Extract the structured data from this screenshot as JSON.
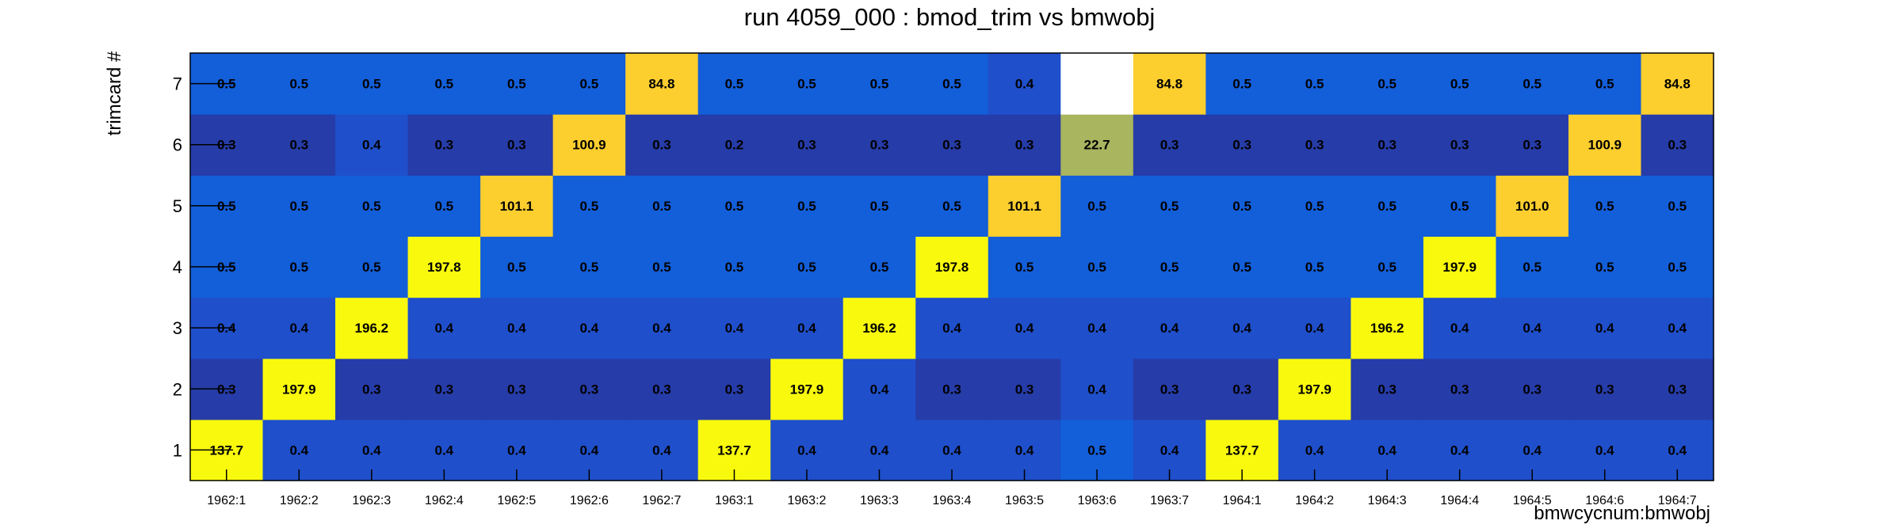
{
  "chart_data": {
    "type": "heatmap",
    "title": "run 4059_000 : bmod_trim vs bmwobj",
    "xlabel": "bmwcycnum:bmwobj",
    "ylabel": "trimcard #",
    "x_categories": [
      "1962:1",
      "1962:2",
      "1962:3",
      "1962:4",
      "1962:5",
      "1962:6",
      "1962:7",
      "1963:1",
      "1963:2",
      "1963:3",
      "1963:4",
      "1963:5",
      "1963:6",
      "1963:7",
      "1964:1",
      "1964:2",
      "1964:3",
      "1964:4",
      "1964:5",
      "1964:6",
      "1964:7"
    ],
    "y_categories": [
      "1",
      "2",
      "3",
      "4",
      "5",
      "6",
      "7"
    ],
    "values": [
      [
        137.7,
        0.4,
        0.4,
        0.4,
        0.4,
        0.4,
        0.4,
        137.7,
        0.4,
        0.4,
        0.4,
        0.4,
        0.5,
        0.4,
        137.7,
        0.4,
        0.4,
        0.4,
        0.4,
        0.4,
        0.4
      ],
      [
        0.3,
        197.9,
        0.3,
        0.3,
        0.3,
        0.3,
        0.3,
        0.3,
        197.9,
        0.4,
        0.3,
        0.3,
        0.4,
        0.3,
        0.3,
        197.9,
        0.3,
        0.3,
        0.3,
        0.3,
        0.3
      ],
      [
        0.4,
        0.4,
        196.2,
        0.4,
        0.4,
        0.4,
        0.4,
        0.4,
        0.4,
        196.2,
        0.4,
        0.4,
        0.4,
        0.4,
        0.4,
        0.4,
        196.2,
        0.4,
        0.4,
        0.4,
        0.4
      ],
      [
        0.5,
        0.5,
        0.5,
        197.8,
        0.5,
        0.5,
        0.5,
        0.5,
        0.5,
        0.5,
        197.8,
        0.5,
        0.5,
        0.5,
        0.5,
        0.5,
        0.5,
        197.9,
        0.5,
        0.5,
        0.5
      ],
      [
        0.5,
        0.5,
        0.5,
        0.5,
        101.1,
        0.5,
        0.5,
        0.5,
        0.5,
        0.5,
        0.5,
        101.1,
        0.5,
        0.5,
        0.5,
        0.5,
        0.5,
        0.5,
        101.0,
        0.5,
        0.5
      ],
      [
        0.3,
        0.3,
        0.4,
        0.3,
        0.3,
        100.9,
        0.3,
        0.2,
        0.3,
        0.3,
        0.3,
        0.3,
        22.7,
        0.3,
        0.3,
        0.3,
        0.3,
        0.3,
        0.3,
        100.9,
        0.3
      ],
      [
        0.5,
        0.5,
        0.5,
        0.5,
        0.5,
        0.5,
        84.8,
        0.5,
        0.5,
        0.5,
        0.5,
        0.4,
        null,
        84.8,
        0.5,
        0.5,
        0.5,
        0.5,
        0.5,
        0.5,
        84.8
      ]
    ],
    "colors": {
      "dark_blue": "#263ca8",
      "mid_blue": "#1f4fcb",
      "blue": "#135ed9",
      "olive": "#a9b55f",
      "orange": "#fcce2e",
      "yellow": "#f9f90e",
      "empty": "#ffffff",
      "frame": "#000000"
    }
  }
}
